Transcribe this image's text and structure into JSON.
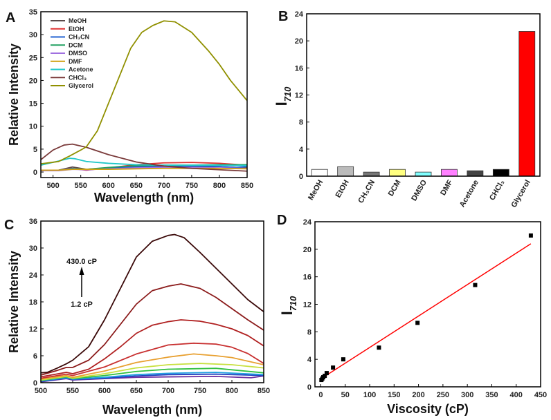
{
  "chart_data": [
    {
      "panel": "A",
      "type": "line",
      "xlabel": "Wavelength (nm)",
      "ylabel": "Relative Intensity",
      "xlim": [
        478,
        850
      ],
      "ylim": [
        -1.2,
        35
      ],
      "xticks": [
        500,
        550,
        600,
        650,
        700,
        750,
        800,
        850
      ],
      "yticks": [
        0,
        5,
        10,
        15,
        20,
        25,
        30,
        35
      ],
      "legend": "top-left",
      "series": [
        {
          "name": "MeOH",
          "color": "#5a4a4a",
          "points": [
            [
              478,
              0.3
            ],
            [
              510,
              0.4
            ],
            [
              535,
              1.1
            ],
            [
              560,
              0.6
            ],
            [
              600,
              0.9
            ],
            [
              650,
              1.3
            ],
            [
              700,
              1.4
            ],
            [
              750,
              1.3
            ],
            [
              800,
              1.2
            ],
            [
              850,
              0.9
            ]
          ]
        },
        {
          "name": "EtOH",
          "color": "#e03030",
          "points": [
            [
              478,
              0.3
            ],
            [
              510,
              0.4
            ],
            [
              530,
              0.8
            ],
            [
              560,
              0.4
            ],
            [
              600,
              0.9
            ],
            [
              650,
              1.6
            ],
            [
              700,
              2.0
            ],
            [
              750,
              2.1
            ],
            [
              800,
              1.9
            ],
            [
              850,
              1.5
            ]
          ]
        },
        {
          "name": "CH₃CN",
          "color": "#2060d0",
          "points": [
            [
              478,
              0.3
            ],
            [
              510,
              0.4
            ],
            [
              535,
              0.8
            ],
            [
              560,
              0.5
            ],
            [
              600,
              0.8
            ],
            [
              650,
              1.1
            ],
            [
              700,
              1.2
            ],
            [
              750,
              1.2
            ],
            [
              800,
              1.2
            ],
            [
              830,
              1.0
            ],
            [
              850,
              1.2
            ]
          ]
        },
        {
          "name": "DCM",
          "color": "#20a060",
          "points": [
            [
              478,
              0.3
            ],
            [
              510,
              0.4
            ],
            [
              535,
              0.7
            ],
            [
              560,
              0.6
            ],
            [
              600,
              1.0
            ],
            [
              650,
              1.4
            ],
            [
              700,
              1.5
            ],
            [
              750,
              1.5
            ],
            [
              800,
              1.6
            ],
            [
              850,
              1.6
            ]
          ]
        },
        {
          "name": "DMSO",
          "color": "#a070e0",
          "points": [
            [
              478,
              0.3
            ],
            [
              510,
              0.3
            ],
            [
              535,
              0.6
            ],
            [
              560,
              0.5
            ],
            [
              600,
              0.7
            ],
            [
              650,
              0.9
            ],
            [
              700,
              1.0
            ],
            [
              750,
              1.0
            ],
            [
              800,
              0.9
            ],
            [
              850,
              0.8
            ]
          ]
        },
        {
          "name": "DMF",
          "color": "#d0a010",
          "points": [
            [
              478,
              0.4
            ],
            [
              510,
              0.4
            ],
            [
              535,
              0.6
            ],
            [
              600,
              0.6
            ],
            [
              700,
              0.8
            ],
            [
              800,
              0.8
            ],
            [
              850,
              0.7
            ]
          ]
        },
        {
          "name": "Acetone",
          "color": "#20c8c8",
          "points": [
            [
              478,
              1.5
            ],
            [
              510,
              2.4
            ],
            [
              530,
              3.0
            ],
            [
              540,
              2.9
            ],
            [
              560,
              2.3
            ],
            [
              600,
              1.9
            ],
            [
              650,
              1.6
            ],
            [
              700,
              1.5
            ],
            [
              750,
              1.5
            ],
            [
              800,
              1.5
            ],
            [
              850,
              1.4
            ]
          ]
        },
        {
          "name": "CHCl₃",
          "color": "#7a3a3a",
          "points": [
            [
              478,
              2.7
            ],
            [
              500,
              4.8
            ],
            [
              520,
              5.9
            ],
            [
              535,
              6.1
            ],
            [
              560,
              5.4
            ],
            [
              600,
              3.8
            ],
            [
              650,
              2.2
            ],
            [
              700,
              1.3
            ],
            [
              750,
              0.8
            ],
            [
              800,
              0.5
            ],
            [
              850,
              0.2
            ]
          ]
        },
        {
          "name": "Glycerol",
          "color": "#909000",
          "points": [
            [
              478,
              1.8
            ],
            [
              510,
              2.3
            ],
            [
              530,
              3.5
            ],
            [
              550,
              4.8
            ],
            [
              560,
              5.5
            ],
            [
              580,
              9
            ],
            [
              600,
              15
            ],
            [
              620,
              21
            ],
            [
              640,
              27
            ],
            [
              660,
              30.5
            ],
            [
              680,
              32
            ],
            [
              700,
              33
            ],
            [
              720,
              32.8
            ],
            [
              750,
              30.5
            ],
            [
              780,
              26.5
            ],
            [
              800,
              23.5
            ],
            [
              820,
              20
            ],
            [
              850,
              15.6
            ]
          ]
        }
      ]
    },
    {
      "panel": "B",
      "type": "bar",
      "xlabel": "",
      "ylabel": "I",
      "ylabel_sub": "710",
      "ylim": [
        0,
        24
      ],
      "yticks": [
        0,
        4,
        8,
        12,
        16,
        20,
        24
      ],
      "categories": [
        "MeOH",
        "EtOH",
        "CH₃CN",
        "DCM",
        "DMSO",
        "DMF",
        "Acetone",
        "CHCl₃",
        "Glycerol"
      ],
      "values": [
        1.0,
        1.4,
        0.6,
        1.0,
        0.6,
        1.0,
        0.8,
        1.0,
        21.4
      ],
      "colors": [
        "#ffffff",
        "#bbbbbb",
        "#777777",
        "#ffff80",
        "#80ffff",
        "#ff80ff",
        "#444444",
        "#000000",
        "#ff0000"
      ]
    },
    {
      "panel": "C",
      "type": "line",
      "xlabel": "Wavelength (nm)",
      "ylabel": "Relative Intensity",
      "xlim": [
        500,
        850
      ],
      "ylim": [
        0,
        36
      ],
      "xticks": [
        500,
        550,
        600,
        650,
        700,
        750,
        800,
        850
      ],
      "yticks": [
        0,
        6,
        12,
        18,
        24,
        30,
        36
      ],
      "annotations": {
        "top": "430.0 cP",
        "bottom": "1.2 cP"
      },
      "series": [
        {
          "name": "purple",
          "color": "#7030a0",
          "points": [
            [
              500,
              0.2
            ],
            [
              540,
              0.9
            ],
            [
              550,
              0.6
            ],
            [
              600,
              0.9
            ],
            [
              650,
              1.2
            ],
            [
              700,
              1.3
            ],
            [
              775,
              1.4
            ],
            [
              830,
              1.1
            ],
            [
              850,
              1.5
            ]
          ]
        },
        {
          "name": "blue",
          "color": "#2040c0",
          "points": [
            [
              500,
              0.3
            ],
            [
              540,
              1.0
            ],
            [
              550,
              0.7
            ],
            [
              600,
              1.0
            ],
            [
              650,
              1.5
            ],
            [
              700,
              1.8
            ],
            [
              775,
              1.9
            ],
            [
              850,
              1.6
            ]
          ]
        },
        {
          "name": "light-blue",
          "color": "#20a0e0",
          "points": [
            [
              500,
              0.4
            ],
            [
              540,
              1.1
            ],
            [
              550,
              0.8
            ],
            [
              600,
              1.2
            ],
            [
              650,
              1.8
            ],
            [
              700,
              2.1
            ],
            [
              775,
              2.3
            ],
            [
              850,
              1.8
            ]
          ]
        },
        {
          "name": "green",
          "color": "#30c040",
          "points": [
            [
              500,
              0.5
            ],
            [
              540,
              1.3
            ],
            [
              550,
              0.9
            ],
            [
              600,
              1.6
            ],
            [
              650,
              2.5
            ],
            [
              700,
              3.0
            ],
            [
              775,
              3.2
            ],
            [
              850,
              2.2
            ]
          ]
        },
        {
          "name": "yellow-green",
          "color": "#c8e040",
          "points": [
            [
              500,
              0.6
            ],
            [
              540,
              1.4
            ],
            [
              550,
              1.0
            ],
            [
              600,
              2.0
            ],
            [
              650,
              3.3
            ],
            [
              700,
              4.0
            ],
            [
              750,
              4.3
            ],
            [
              800,
              4.0
            ],
            [
              850,
              3.3
            ]
          ]
        },
        {
          "name": "orange",
          "color": "#e8a030",
          "points": [
            [
              500,
              0.8
            ],
            [
              540,
              1.6
            ],
            [
              550,
              1.2
            ],
            [
              600,
              2.6
            ],
            [
              650,
              4.5
            ],
            [
              700,
              5.7
            ],
            [
              740,
              6.4
            ],
            [
              775,
              6.0
            ],
            [
              800,
              5.6
            ],
            [
              850,
              4.0
            ]
          ]
        },
        {
          "name": "red",
          "color": "#c83030",
          "points": [
            [
              500,
              1.0
            ],
            [
              540,
              1.9
            ],
            [
              550,
              1.6
            ],
            [
              600,
              3.5
            ],
            [
              650,
              6.4
            ],
            [
              700,
              8.4
            ],
            [
              740,
              8.8
            ],
            [
              775,
              8.6
            ],
            [
              800,
              7.9
            ],
            [
              825,
              6.5
            ],
            [
              850,
              4.3
            ]
          ]
        },
        {
          "name": "dark-red",
          "color": "#b02020",
          "points": [
            [
              500,
              1.3
            ],
            [
              540,
              2.3
            ],
            [
              550,
              2.0
            ],
            [
              575,
              3.0
            ],
            [
              600,
              5.3
            ],
            [
              625,
              8
            ],
            [
              650,
              11
            ],
            [
              675,
              12.8
            ],
            [
              700,
              13.6
            ],
            [
              720,
              14
            ],
            [
              750,
              13.7
            ],
            [
              775,
              13
            ],
            [
              800,
              12
            ],
            [
              825,
              10.5
            ],
            [
              850,
              8.2
            ]
          ]
        },
        {
          "name": "maroon",
          "color": "#8b1a1a",
          "points": [
            [
              500,
              1.7
            ],
            [
              525,
              2.7
            ],
            [
              540,
              3.4
            ],
            [
              550,
              3.4
            ],
            [
              575,
              5
            ],
            [
              600,
              8.5
            ],
            [
              625,
              13
            ],
            [
              650,
              17.5
            ],
            [
              675,
              20.5
            ],
            [
              700,
              21.5
            ],
            [
              720,
              22
            ],
            [
              750,
              21
            ],
            [
              775,
              19
            ],
            [
              800,
              16.5
            ],
            [
              825,
              14
            ],
            [
              850,
              11.7
            ]
          ]
        },
        {
          "name": "darkest",
          "color": "#3a0808",
          "points": [
            [
              500,
              2.2
            ],
            [
              510,
              2.3
            ],
            [
              525,
              3.2
            ],
            [
              540,
              4.2
            ],
            [
              550,
              5
            ],
            [
              575,
              8
            ],
            [
              600,
              14
            ],
            [
              625,
              21
            ],
            [
              650,
              28
            ],
            [
              675,
              31.5
            ],
            [
              700,
              32.8
            ],
            [
              710,
              33
            ],
            [
              725,
              32.3
            ],
            [
              750,
              29
            ],
            [
              775,
              25.5
            ],
            [
              800,
              22
            ],
            [
              825,
              18.5
            ],
            [
              850,
              15.8
            ]
          ]
        }
      ]
    },
    {
      "panel": "D",
      "type": "scatter",
      "xlabel": "Viscosity (cP)",
      "ylabel": "I",
      "ylabel_sub": "710",
      "xlim": [
        -12,
        450
      ],
      "ylim": [
        0,
        24
      ],
      "xticks": [
        0,
        50,
        100,
        150,
        200,
        250,
        300,
        350,
        400,
        450
      ],
      "yticks": [
        0,
        4,
        8,
        12,
        16,
        20,
        24
      ],
      "points": [
        [
          1.2,
          1.0
        ],
        [
          3,
          1.2
        ],
        [
          5,
          1.4
        ],
        [
          8,
          1.6
        ],
        [
          12,
          2.0
        ],
        [
          25,
          2.8
        ],
        [
          46,
          4.0
        ],
        [
          119,
          5.7
        ],
        [
          198,
          9.3
        ],
        [
          316,
          14.8
        ],
        [
          430,
          22.0
        ]
      ],
      "fit_line": {
        "color": "#ff0000",
        "from": [
          1,
          1.2
        ],
        "to": [
          430,
          20.8
        ]
      }
    }
  ]
}
